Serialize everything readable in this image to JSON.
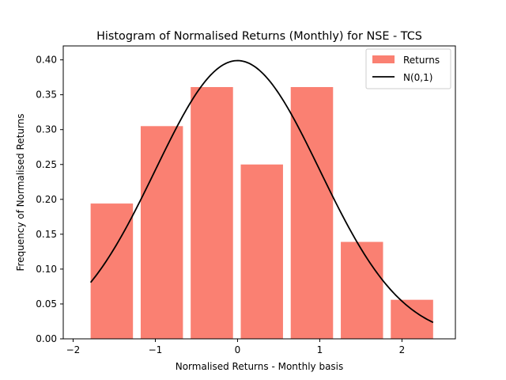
{
  "chart_data": {
    "type": "bar",
    "title": "Histogram of Normalised Returns (Monthly) for NSE - TCS",
    "xlabel": "Normalised Returns - Monthly basis",
    "ylabel": "Frequency of Normalised Returns",
    "xlim": [
      -2.12,
      2.65
    ],
    "ylim": [
      0.0,
      0.42
    ],
    "xticks": [
      -2,
      -1,
      0,
      1,
      2
    ],
    "xtick_labels": [
      "−2",
      "−1",
      "0",
      "1",
      "2"
    ],
    "yticks": [
      0.0,
      0.05,
      0.1,
      0.15,
      0.2,
      0.25,
      0.3,
      0.35,
      0.4
    ],
    "ytick_labels": [
      "0.00",
      "0.05",
      "0.10",
      "0.15",
      "0.20",
      "0.25",
      "0.30",
      "0.35",
      "0.40"
    ],
    "grid": false,
    "legend": {
      "position": "top-right",
      "entries": [
        "Returns",
        "N(0,1)"
      ]
    },
    "series": [
      {
        "name": "Returns",
        "type": "bar",
        "color": "#fa8072",
        "bins": [
          {
            "left": -1.787,
            "right": -1.272,
            "value": 0.194
          },
          {
            "left": -1.178,
            "right": -0.664,
            "value": 0.305
          },
          {
            "left": -0.57,
            "right": -0.055,
            "value": 0.361
          },
          {
            "left": 0.039,
            "right": 0.553,
            "value": 0.25
          },
          {
            "left": 0.647,
            "right": 1.162,
            "value": 0.361
          },
          {
            "left": 1.256,
            "right": 1.77,
            "value": 0.139
          },
          {
            "left": 1.864,
            "right": 2.379,
            "value": 0.056
          }
        ]
      },
      {
        "name": "N(0,1)",
        "type": "line",
        "color": "#000000",
        "function": "standard_normal_pdf",
        "x_range": [
          -1.787,
          2.379
        ]
      }
    ]
  }
}
